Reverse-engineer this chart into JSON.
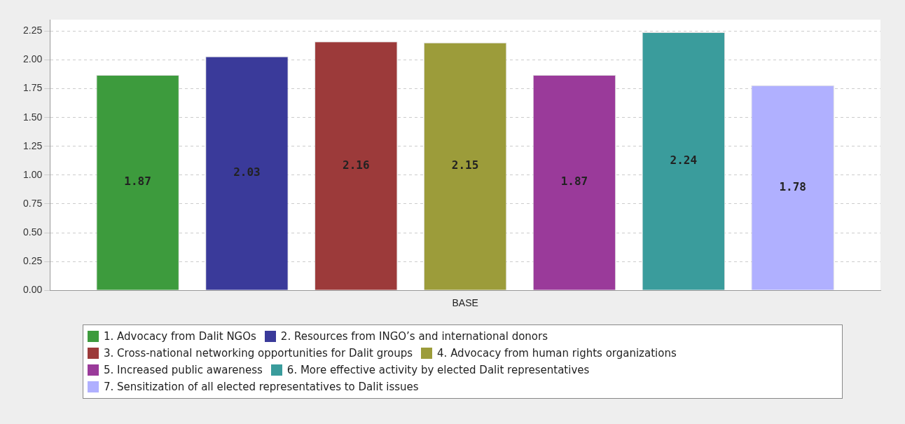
{
  "chart_data": {
    "type": "bar",
    "categories": [
      "BASE"
    ],
    "series": [
      {
        "name": "1. Advocacy from Dalit NGOs",
        "color": "#3d9b3d",
        "values": [
          1.87
        ]
      },
      {
        "name": "2. Resources from INGO’s and international donors",
        "color": "#3a3a9a",
        "values": [
          2.03
        ]
      },
      {
        "name": "3. Cross-national networking opportunities for Dalit groups",
        "color": "#9c3a3a",
        "values": [
          2.16
        ]
      },
      {
        "name": "4. Advocacy from human rights organizations",
        "color": "#9c9c3a",
        "values": [
          2.15
        ]
      },
      {
        "name": "5. Increased public awareness",
        "color": "#9a3a9a",
        "values": [
          1.87
        ]
      },
      {
        "name": "6. More effective activity by elected Dalit representatives",
        "color": "#3a9c9c",
        "values": [
          2.24
        ]
      },
      {
        "name": "7. Sensitization of all elected representatives to Dalit issues",
        "color": "#b0b0ff",
        "values": [
          1.78
        ]
      }
    ],
    "ylim": [
      0,
      2.35
    ],
    "yticks": [
      {
        "value": 0,
        "label": "0.00"
      },
      0.25,
      {
        "value": 0.5,
        "label": "0.50"
      },
      0.75,
      {
        "value": 1,
        "label": "1.00"
      },
      1.25,
      {
        "value": 1.5,
        "label": "1.50"
      },
      1.75,
      {
        "value": 2,
        "label": "2.00"
      },
      2.25
    ],
    "grid": "y",
    "legend": "bottom",
    "data_labels": true
  }
}
